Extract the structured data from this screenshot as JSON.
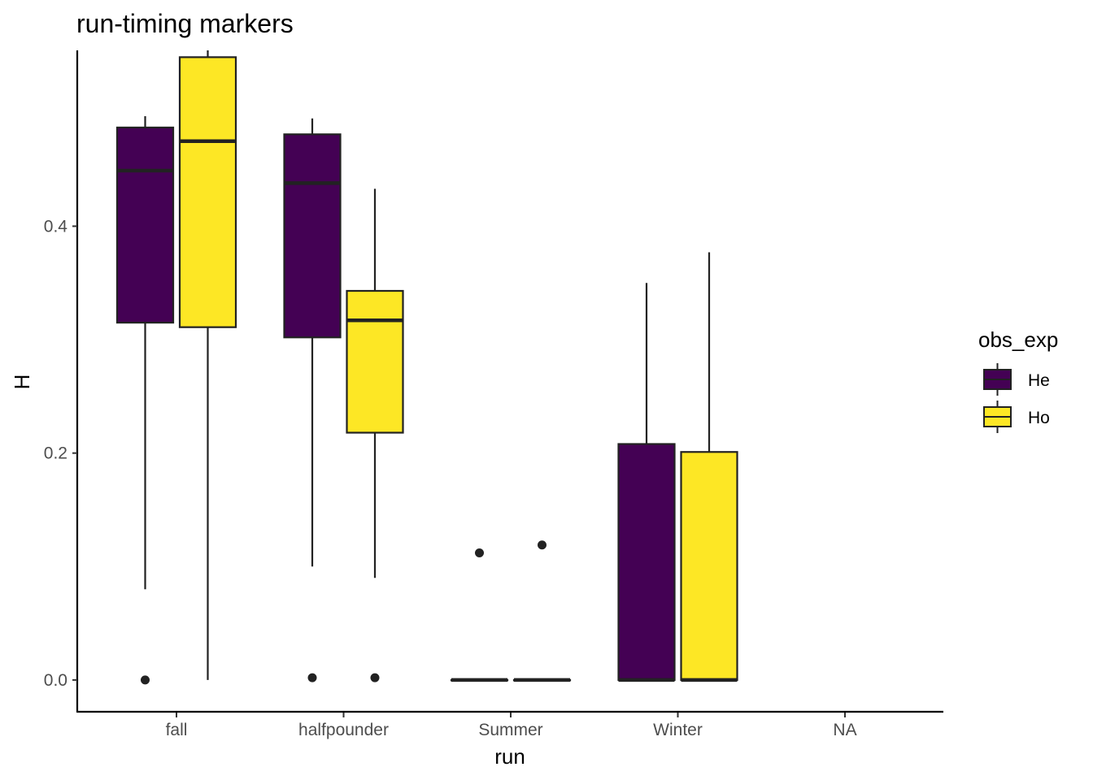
{
  "chart_data": {
    "type": "box",
    "title": "run-timing markers",
    "xlabel": "run",
    "ylabel": "H",
    "categories": [
      "fall",
      "halfpounder",
      "Summer",
      "Winter",
      "NA"
    ],
    "ylim": [
      -0.028,
      0.555
    ],
    "yticks": [
      0.0,
      0.2,
      0.4
    ],
    "ytick_labels": [
      "0.0",
      "0.2",
      "0.4"
    ],
    "legend": {
      "title": "obs_exp",
      "position": "right"
    },
    "grid": false,
    "series": [
      {
        "name": "He",
        "color": "#440154",
        "boxes": [
          {
            "category": "fall",
            "whisker_low": 0.08,
            "q1": 0.315,
            "median": 0.449,
            "q3": 0.487,
            "whisker_high": 0.497,
            "outliers": [
              0.0
            ]
          },
          {
            "category": "halfpounder",
            "whisker_low": 0.1,
            "q1": 0.302,
            "median": 0.438,
            "q3": 0.481,
            "whisker_high": 0.495,
            "outliers": [
              0.002
            ]
          },
          {
            "category": "Summer",
            "whisker_low": 0.0,
            "q1": 0.0,
            "median": 0.0,
            "q3": 0.0,
            "whisker_high": 0.0,
            "outliers": [
              0.112
            ]
          },
          {
            "category": "Winter",
            "whisker_low": 0.0,
            "q1": 0.0,
            "median": 0.0,
            "q3": 0.208,
            "whisker_high": 0.35,
            "outliers": []
          }
        ]
      },
      {
        "name": "Ho",
        "color": "#fde725",
        "boxes": [
          {
            "category": "fall",
            "whisker_low": 0.0,
            "q1": 0.311,
            "median": 0.475,
            "q3": 0.549,
            "whisker_high": 0.555,
            "outliers": []
          },
          {
            "category": "halfpounder",
            "whisker_low": 0.09,
            "q1": 0.218,
            "median": 0.317,
            "q3": 0.343,
            "whisker_high": 0.433,
            "outliers": [
              0.002
            ]
          },
          {
            "category": "Summer",
            "whisker_low": 0.0,
            "q1": 0.0,
            "median": 0.0,
            "q3": 0.0,
            "whisker_high": 0.0,
            "outliers": [
              0.119
            ]
          },
          {
            "category": "Winter",
            "whisker_low": 0.0,
            "q1": 0.0,
            "median": 0.0,
            "q3": 0.201,
            "whisker_high": 0.377,
            "outliers": []
          }
        ]
      }
    ]
  }
}
